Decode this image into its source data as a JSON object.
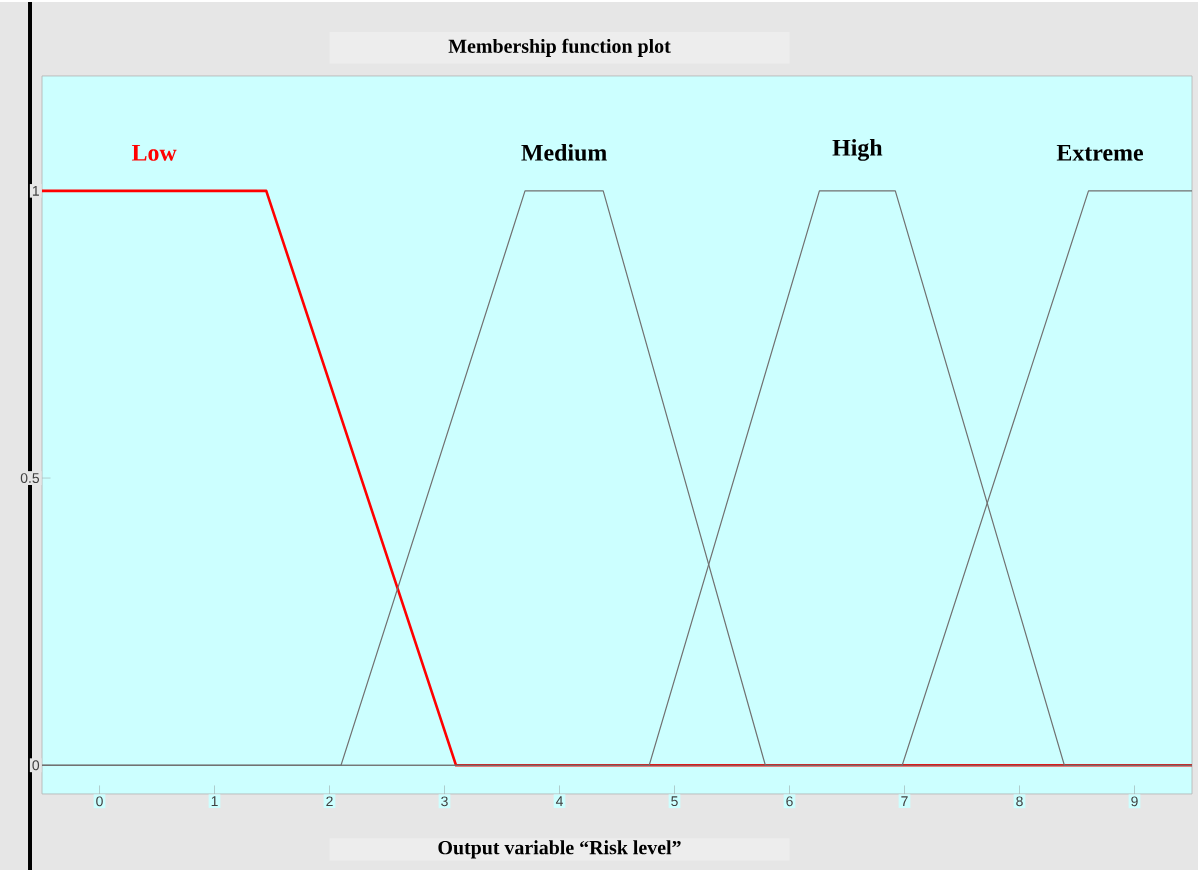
{
  "chart_data": {
    "type": "line",
    "title": "Membership function plot",
    "xlabel": "Output variable “Risk  level”",
    "xlim": [
      -0.5,
      9.5
    ],
    "ylim": [
      -0.05,
      1.2
    ],
    "xticks": [
      0,
      1,
      2,
      3,
      4,
      5,
      6,
      7,
      8,
      9
    ],
    "yticks": [
      0,
      0.5,
      1
    ],
    "series": [
      {
        "name": "Low",
        "color": "#ff0000",
        "x": [
          -0.5,
          1.45,
          3.1,
          9.5
        ],
        "values": [
          1,
          1,
          0,
          0
        ]
      },
      {
        "name": "Medium",
        "color": "#707070",
        "x": [
          -0.5,
          2.1,
          3.7,
          4.38,
          5.79,
          9.5
        ],
        "values": [
          0,
          0,
          1,
          1,
          0,
          0
        ]
      },
      {
        "name": "High",
        "color": "#707070",
        "x": [
          -0.5,
          4.78,
          6.26,
          6.92,
          8.39,
          9.5
        ],
        "values": [
          0,
          0,
          1,
          1,
          0,
          0
        ]
      },
      {
        "name": "Extreme",
        "color": "#707070",
        "x": [
          -0.5,
          6.98,
          8.6,
          9.5
        ],
        "values": [
          0,
          0,
          1,
          1
        ]
      }
    ]
  }
}
